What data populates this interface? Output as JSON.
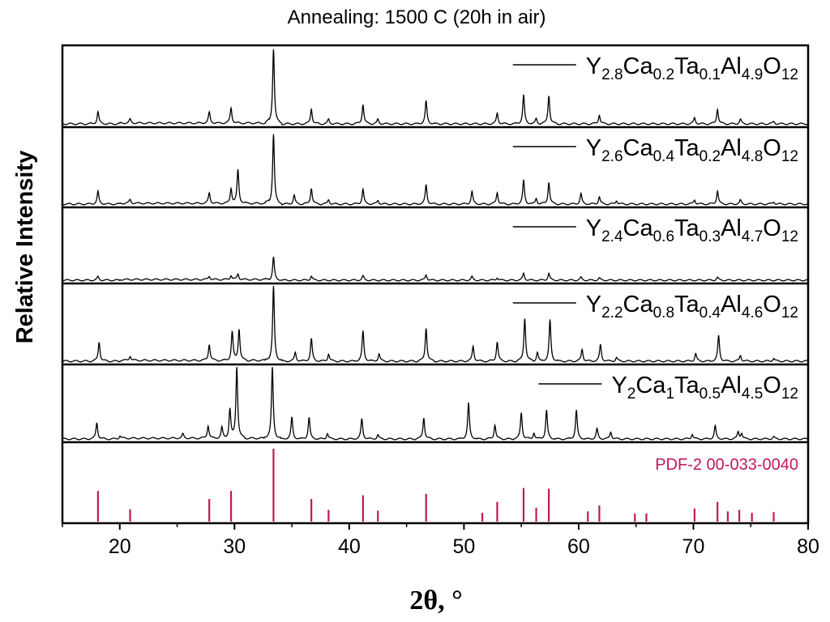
{
  "chart_data": {
    "type": "line",
    "title": "Annealing: 1500 C (20h in air)",
    "xlabel": "2θ, °",
    "ylabel": "Relative Intensity",
    "xlim": [
      15,
      80
    ],
    "xticks": [
      20,
      30,
      40,
      50,
      60,
      70,
      80
    ],
    "grid": false,
    "legend_position": "top-right of each panel",
    "series": [
      {
        "name": "Y2.8Ca0.2Ta0.1Al4.9O12",
        "label_parts": [
          [
            "Y",
            ""
          ],
          [
            "2.8",
            "s"
          ],
          [
            "Ca",
            ""
          ],
          [
            "0.2",
            "s"
          ],
          [
            "Ta",
            ""
          ],
          [
            "0.1",
            "s"
          ],
          [
            "Al",
            ""
          ],
          [
            "4.9",
            "s"
          ],
          [
            "O",
            ""
          ],
          [
            "12",
            "s"
          ]
        ],
        "peaks": [
          [
            18.1,
            0.16
          ],
          [
            20.9,
            0.05
          ],
          [
            27.8,
            0.14
          ],
          [
            29.7,
            0.2
          ],
          [
            33.4,
            1.0
          ],
          [
            36.7,
            0.2
          ],
          [
            38.2,
            0.06
          ],
          [
            41.2,
            0.26
          ],
          [
            42.5,
            0.06
          ],
          [
            46.7,
            0.3
          ],
          [
            52.9,
            0.14
          ],
          [
            55.2,
            0.38
          ],
          [
            56.3,
            0.07
          ],
          [
            57.4,
            0.38
          ],
          [
            61.8,
            0.12
          ],
          [
            70.1,
            0.08
          ],
          [
            72.1,
            0.2
          ],
          [
            74.1,
            0.06
          ],
          [
            77.0,
            0.03
          ]
        ]
      },
      {
        "name": "Y2.6Ca0.4Ta0.2Al4.8O12",
        "label_parts": [
          [
            "Y",
            ""
          ],
          [
            "2.6",
            "s"
          ],
          [
            "Ca",
            ""
          ],
          [
            "0.4",
            "s"
          ],
          [
            "Ta",
            ""
          ],
          [
            "0.2",
            "s"
          ],
          [
            "Al",
            ""
          ],
          [
            "4.8",
            "s"
          ],
          [
            "O",
            ""
          ],
          [
            "12",
            "s"
          ]
        ],
        "peaks": [
          [
            18.1,
            0.17
          ],
          [
            20.9,
            0.05
          ],
          [
            27.8,
            0.14
          ],
          [
            29.7,
            0.2
          ],
          [
            30.3,
            0.45
          ],
          [
            33.4,
            0.95
          ],
          [
            35.2,
            0.12
          ],
          [
            36.7,
            0.22
          ],
          [
            38.2,
            0.06
          ],
          [
            41.2,
            0.2
          ],
          [
            42.5,
            0.05
          ],
          [
            46.7,
            0.26
          ],
          [
            50.7,
            0.17
          ],
          [
            52.9,
            0.16
          ],
          [
            55.2,
            0.32
          ],
          [
            56.3,
            0.08
          ],
          [
            57.4,
            0.3
          ],
          [
            60.2,
            0.14
          ],
          [
            61.8,
            0.1
          ],
          [
            63.3,
            0.05
          ],
          [
            70.1,
            0.06
          ],
          [
            72.1,
            0.18
          ],
          [
            74.1,
            0.05
          ],
          [
            77.0,
            0.03
          ]
        ]
      },
      {
        "name": "Y2.4Ca0.6Ta0.3Al4.7O12",
        "label_parts": [
          [
            "Y",
            ""
          ],
          [
            "2.4",
            "s"
          ],
          [
            "Ca",
            ""
          ],
          [
            "0.6",
            "s"
          ],
          [
            "Ta",
            ""
          ],
          [
            "0.3",
            "s"
          ],
          [
            "Al",
            ""
          ],
          [
            "4.7",
            "s"
          ],
          [
            "O",
            ""
          ],
          [
            "12",
            "s"
          ]
        ],
        "peaks": [
          [
            18.1,
            0.05
          ],
          [
            27.8,
            0.05
          ],
          [
            29.7,
            0.06
          ],
          [
            30.3,
            0.08
          ],
          [
            33.4,
            0.33
          ],
          [
            36.7,
            0.06
          ],
          [
            41.2,
            0.06
          ],
          [
            46.7,
            0.08
          ],
          [
            50.7,
            0.05
          ],
          [
            52.9,
            0.04
          ],
          [
            55.2,
            0.1
          ],
          [
            57.4,
            0.1
          ],
          [
            60.2,
            0.04
          ],
          [
            61.8,
            0.03
          ],
          [
            72.1,
            0.04
          ]
        ]
      },
      {
        "name": "Y2.2Ca0.8Ta0.4Al4.6O12",
        "label_parts": [
          [
            "Y",
            ""
          ],
          [
            "2.2",
            "s"
          ],
          [
            "Ca",
            ""
          ],
          [
            "0.8",
            "s"
          ],
          [
            "Ta",
            ""
          ],
          [
            "0.4",
            "s"
          ],
          [
            "Al",
            ""
          ],
          [
            "4.6",
            "s"
          ],
          [
            "O",
            ""
          ],
          [
            "12",
            "s"
          ]
        ],
        "peaks": [
          [
            18.2,
            0.26
          ],
          [
            20.9,
            0.06
          ],
          [
            27.8,
            0.22
          ],
          [
            29.8,
            0.38
          ],
          [
            30.4,
            0.42
          ],
          [
            33.4,
            1.0
          ],
          [
            35.3,
            0.12
          ],
          [
            36.7,
            0.3
          ],
          [
            38.2,
            0.1
          ],
          [
            41.2,
            0.4
          ],
          [
            42.6,
            0.1
          ],
          [
            46.7,
            0.45
          ],
          [
            50.8,
            0.2
          ],
          [
            52.9,
            0.26
          ],
          [
            55.3,
            0.58
          ],
          [
            56.4,
            0.12
          ],
          [
            57.5,
            0.55
          ],
          [
            60.3,
            0.16
          ],
          [
            61.9,
            0.22
          ],
          [
            63.3,
            0.05
          ],
          [
            70.2,
            0.1
          ],
          [
            72.2,
            0.34
          ],
          [
            74.1,
            0.08
          ],
          [
            77.0,
            0.04
          ]
        ]
      },
      {
        "name": "Y2Ca1Ta0.5Al4.5O12",
        "label_parts": [
          [
            "Y",
            ""
          ],
          [
            "2",
            "s"
          ],
          [
            "Ca",
            ""
          ],
          [
            "1",
            "s"
          ],
          [
            "Ta",
            ""
          ],
          [
            "0.5",
            "s"
          ],
          [
            "Al",
            ""
          ],
          [
            "4.5",
            "s"
          ],
          [
            "O",
            ""
          ],
          [
            "12",
            "s"
          ]
        ],
        "peaks": [
          [
            18.0,
            0.23
          ],
          [
            20.0,
            0.04
          ],
          [
            25.5,
            0.06
          ],
          [
            27.7,
            0.18
          ],
          [
            28.9,
            0.15
          ],
          [
            29.6,
            0.4
          ],
          [
            30.2,
            1.0
          ],
          [
            33.3,
            1.0
          ],
          [
            35.0,
            0.3
          ],
          [
            36.5,
            0.3
          ],
          [
            38.1,
            0.08
          ],
          [
            41.1,
            0.28
          ],
          [
            42.5,
            0.06
          ],
          [
            46.5,
            0.3
          ],
          [
            50.4,
            0.5
          ],
          [
            52.7,
            0.2
          ],
          [
            55.0,
            0.37
          ],
          [
            56.1,
            0.09
          ],
          [
            57.2,
            0.4
          ],
          [
            59.8,
            0.4
          ],
          [
            61.6,
            0.14
          ],
          [
            62.8,
            0.1
          ],
          [
            69.9,
            0.07
          ],
          [
            71.9,
            0.18
          ],
          [
            73.9,
            0.1
          ],
          [
            74.2,
            0.08
          ],
          [
            77.0,
            0.03
          ]
        ]
      }
    ],
    "reference": {
      "name": "PDF-2 00-033-0040",
      "color": "#c2185b",
      "lines": [
        [
          18.1,
          0.42
        ],
        [
          20.9,
          0.17
        ],
        [
          27.8,
          0.31
        ],
        [
          29.7,
          0.42
        ],
        [
          33.4,
          1.0
        ],
        [
          36.7,
          0.31
        ],
        [
          38.2,
          0.16
        ],
        [
          41.2,
          0.36
        ],
        [
          42.5,
          0.15
        ],
        [
          46.7,
          0.38
        ],
        [
          51.6,
          0.12
        ],
        [
          52.9,
          0.27
        ],
        [
          55.2,
          0.46
        ],
        [
          56.3,
          0.19
        ],
        [
          57.4,
          0.45
        ],
        [
          60.8,
          0.14
        ],
        [
          61.8,
          0.22
        ],
        [
          64.9,
          0.11
        ],
        [
          65.9,
          0.11
        ],
        [
          70.1,
          0.18
        ],
        [
          72.1,
          0.27
        ],
        [
          73.0,
          0.14
        ],
        [
          74.0,
          0.16
        ],
        [
          75.1,
          0.12
        ],
        [
          77.0,
          0.13
        ]
      ]
    }
  }
}
